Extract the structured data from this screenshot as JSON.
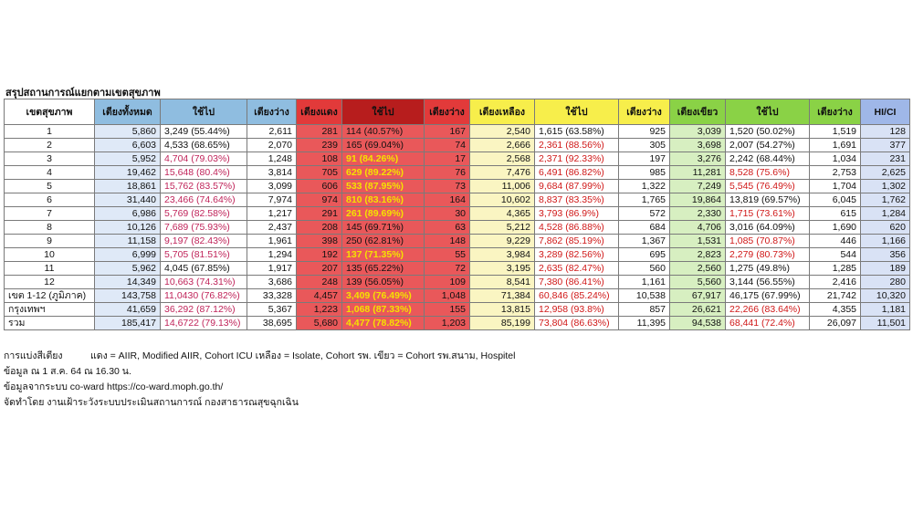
{
  "title": "สรุปสถานการณ์แยกตามเขตสุขภาพ",
  "headers": [
    "เขตสุขภาพ",
    "เตียงทั้งหมด",
    "ใช้ไป",
    "เตียงว่าง",
    "เตียงแดง",
    "ใช้ไป",
    "เตียงว่าง",
    "เตียงเหลือง",
    "ใช้ไป",
    "เตียงว่าง",
    "เตียงเขียว",
    "ใช้ไป",
    "เตียงว่าง",
    "HI/CI"
  ],
  "rows": [
    {
      "zone": "1",
      "total": "5,860",
      "used": "3,249 (55.44%)",
      "free": "2,611",
      "red_total": "281",
      "red_used": "114 (40.57%)",
      "red_free": "167",
      "yel_total": "2,540",
      "yel_used": "1,615 (63.58%)",
      "yel_free": "925",
      "grn_total": "3,039",
      "grn_used": "1,520 (50.02%)",
      "grn_free": "1,519",
      "hici": "128"
    },
    {
      "zone": "2",
      "total": "6,603",
      "used": "4,533 (68.65%)",
      "free": "2,070",
      "red_total": "239",
      "red_used": "165 (69.04%)",
      "red_free": "74",
      "yel_total": "2,666",
      "yel_used": "2,361 (88.56%)",
      "yel_free": "305",
      "grn_total": "3,698",
      "grn_used": "2,007 (54.27%)",
      "grn_free": "1,691",
      "hici": "377"
    },
    {
      "zone": "3",
      "total": "5,952",
      "used": "4,704 (79.03%)",
      "free": "1,248",
      "red_total": "108",
      "red_used": "91 (84.26%)",
      "red_free": "17",
      "yel_total": "2,568",
      "yel_used": "2,371 (92.33%)",
      "yel_free": "197",
      "grn_total": "3,276",
      "grn_used": "2,242 (68.44%)",
      "grn_free": "1,034",
      "hici": "231"
    },
    {
      "zone": "4",
      "total": "19,462",
      "used": "15,648 (80.4%)",
      "free": "3,814",
      "red_total": "705",
      "red_used": "629 (89.22%)",
      "red_free": "76",
      "yel_total": "7,476",
      "yel_used": "6,491 (86.82%)",
      "yel_free": "985",
      "grn_total": "11,281",
      "grn_used": "8,528 (75.6%)",
      "grn_free": "2,753",
      "hici": "2,625"
    },
    {
      "zone": "5",
      "total": "18,861",
      "used": "15,762 (83.57%)",
      "free": "3,099",
      "red_total": "606",
      "red_used": "533 (87.95%)",
      "red_free": "73",
      "yel_total": "11,006",
      "yel_used": "9,684 (87.99%)",
      "yel_free": "1,322",
      "grn_total": "7,249",
      "grn_used": "5,545 (76.49%)",
      "grn_free": "1,704",
      "hici": "1,302"
    },
    {
      "zone": "6",
      "total": "31,440",
      "used": "23,466 (74.64%)",
      "free": "7,974",
      "red_total": "974",
      "red_used": "810 (83.16%)",
      "red_free": "164",
      "yel_total": "10,602",
      "yel_used": "8,837 (83.35%)",
      "yel_free": "1,765",
      "grn_total": "19,864",
      "grn_used": "13,819 (69.57%)",
      "grn_free": "6,045",
      "hici": "1,762"
    },
    {
      "zone": "7",
      "total": "6,986",
      "used": "5,769 (82.58%)",
      "free": "1,217",
      "red_total": "291",
      "red_used": "261 (89.69%)",
      "red_free": "30",
      "yel_total": "4,365",
      "yel_used": "3,793 (86.9%)",
      "yel_free": "572",
      "grn_total": "2,330",
      "grn_used": "1,715 (73.61%)",
      "grn_free": "615",
      "hici": "1,284"
    },
    {
      "zone": "8",
      "total": "10,126",
      "used": "7,689 (75.93%)",
      "free": "2,437",
      "red_total": "208",
      "red_used": "145 (69.71%)",
      "red_free": "63",
      "yel_total": "5,212",
      "yel_used": "4,528 (86.88%)",
      "yel_free": "684",
      "grn_total": "4,706",
      "grn_used": "3,016 (64.09%)",
      "grn_free": "1,690",
      "hici": "620"
    },
    {
      "zone": "9",
      "total": "11,158",
      "used": "9,197 (82.43%)",
      "free": "1,961",
      "red_total": "398",
      "red_used": "250 (62.81%)",
      "red_free": "148",
      "yel_total": "9,229",
      "yel_used": "7,862 (85.19%)",
      "yel_free": "1,367",
      "grn_total": "1,531",
      "grn_used": "1,085 (70.87%)",
      "grn_free": "446",
      "hici": "1,166"
    },
    {
      "zone": "10",
      "total": "6,999",
      "used": "5,705 (81.51%)",
      "free": "1,294",
      "red_total": "192",
      "red_used": "137 (71.35%)",
      "red_free": "55",
      "yel_total": "3,984",
      "yel_used": "3,289 (82.56%)",
      "yel_free": "695",
      "grn_total": "2,823",
      "grn_used": "2,279 (80.73%)",
      "grn_free": "544",
      "hici": "356"
    },
    {
      "zone": "11",
      "total": "5,962",
      "used": "4,045 (67.85%)",
      "free": "1,917",
      "red_total": "207",
      "red_used": "135 (65.22%)",
      "red_free": "72",
      "yel_total": "3,195",
      "yel_used": "2,635 (82.47%)",
      "yel_free": "560",
      "grn_total": "2,560",
      "grn_used": "1,275 (49.8%)",
      "grn_free": "1,285",
      "hici": "189"
    },
    {
      "zone": "12",
      "total": "14,349",
      "used": "10,663 (74.31%)",
      "free": "3,686",
      "red_total": "248",
      "red_used": "139 (56.05%)",
      "red_free": "109",
      "yel_total": "8,541",
      "yel_used": "7,380 (86.41%)",
      "yel_free": "1,161",
      "grn_total": "5,560",
      "grn_used": "3,144 (56.55%)",
      "grn_free": "2,416",
      "hici": "280"
    }
  ],
  "summary": [
    {
      "zone": "เขต 1-12 (ภูมิภาค)",
      "total": "143,758",
      "used": "11,0430 (76.82%)",
      "free": "33,328",
      "red_total": "4,457",
      "red_used": "3,409 (76.49%)",
      "red_free": "1,048",
      "yel_total": "71,384",
      "yel_used": "60,846 (85.24%)",
      "yel_free": "10,538",
      "grn_total": "67,917",
      "grn_used": "46,175 (67.99%)",
      "grn_free": "21,742",
      "hici": "10,320"
    },
    {
      "zone": "กรุงเทพฯ",
      "total": "41,659",
      "used": "36,292 (87.12%)",
      "free": "5,367",
      "red_total": "1,223",
      "red_used": "1,068 (87.33%)",
      "red_free": "155",
      "yel_total": "13,815",
      "yel_used": "12,958 (93.8%)",
      "yel_free": "857",
      "grn_total": "26,621",
      "grn_used": "22,266 (83.64%)",
      "grn_free": "4,355",
      "hici": "1,181"
    },
    {
      "zone": "รวม",
      "total": "185,417",
      "used": "14,6722 (79.13%)",
      "free": "38,695",
      "red_total": "5,680",
      "red_used": "4,477 (78.82%)",
      "red_free": "1,203",
      "yel_total": "85,199",
      "yel_used": "73,804 (86.63%)",
      "yel_free": "11,395",
      "grn_total": "94,538",
      "grn_used": "68,441 (72.4%)",
      "grn_free": "26,097",
      "hici": "11,501"
    }
  ],
  "notes": {
    "legend_key": "การแบ่งสีเตียง",
    "legend_value": "แดง = AIIR, Modified AIIR, Cohort ICU  เหลือง = Isolate, Cohort รพ.  เขียว = Cohort รพ.สนาม, Hospitel",
    "as_of": "ข้อมูล ณ 1 ส.ค. 64 ณ 16.30 น.",
    "source": "ข้อมูลจากระบบ  co-ward  https://co-ward.moph.go.th/",
    "prepared_by": "จัดทำโดย  งานเฝ้าระวังระบบประเมินสถานการณ์  กองสาธารณสุขฉุกเฉิน"
  },
  "colors": {
    "header_blue": "#8fbde0",
    "header_red": "#e23a3a",
    "header_yellow": "#f7ee4b",
    "header_green": "#8ad246",
    "header_hici": "#9fb7e8",
    "pink_text": "#c0245a",
    "yellow_text": "#f5e200"
  }
}
